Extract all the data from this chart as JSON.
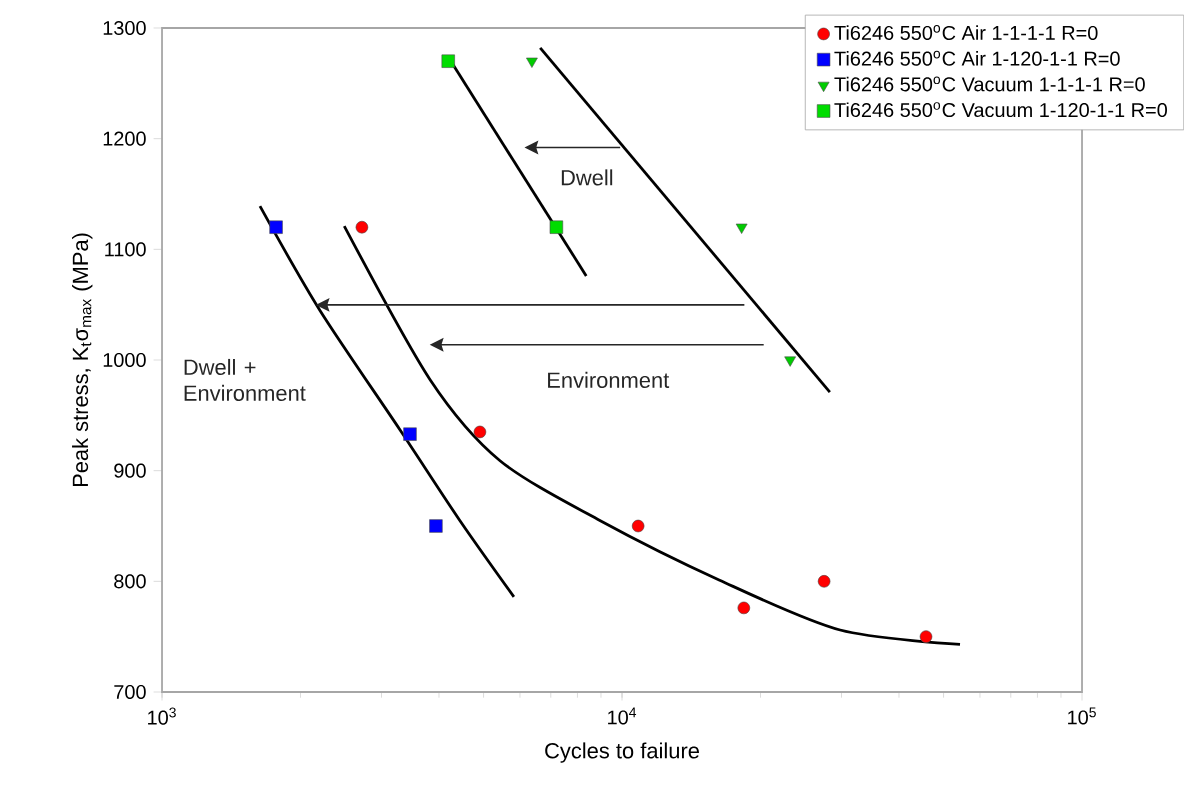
{
  "chart_data": {
    "type": "scatter",
    "xlabel": "Cycles to failure",
    "ylabel": "Peak stress, K$_{t}$σ$_{max}$ (MPa)",
    "log": "x",
    "xlim": [
      1000,
      100000
    ],
    "xticks": [
      {
        "value": 1000,
        "label": "10$^{3}$"
      },
      {
        "value": 10000,
        "label": "10$^{4}$"
      },
      {
        "value": 100000,
        "label": "10$^{5}$"
      }
    ],
    "ylim": [
      700,
      1300
    ],
    "yticks": [
      700,
      800,
      900,
      1000,
      1100,
      1200,
      1300
    ],
    "grid": false,
    "legend": "top right",
    "series": [
      {
        "name": "Ti6246 550$^{o}$C Air 1-1-1-1 R=0",
        "color": "#ff0000",
        "marker": "circle",
        "x": [
          2720,
          4910,
          10840,
          18400,
          27500,
          45800
        ],
        "values": [
          1120,
          935,
          850,
          776,
          800,
          750
        ]
      },
      {
        "name": "Ti6246 550$^{o}$C Air 1-120-1-1 R=0",
        "color": "#0000ff",
        "marker": "square",
        "x": [
          1770,
          3460,
          3940
        ],
        "values": [
          1120,
          933,
          850
        ]
      },
      {
        "name": "Ti6246 550$^{o}$C Vacuum 1-1-1-1 R=0",
        "color": "#00cc00",
        "marker": "triangle",
        "x": [
          6370,
          18200,
          23200
        ],
        "values": [
          1270,
          1120,
          1000
        ]
      },
      {
        "name": "Ti6246 550$^{o}$C Vacuum 1-120-1-1 R=0",
        "color": "#00dd00",
        "marker": "square",
        "x": [
          4190,
          7200
        ],
        "values": [
          1270,
          1120
        ]
      },
      {
        "type": "line",
        "color": "#000000",
        "marker": "none",
        "x": [
          1633,
          2203,
          3290,
          4440,
          5820
        ],
        "values": [
          1139,
          1045,
          937,
          855,
          786
        ]
      },
      {
        "type": "line",
        "color": "#000000",
        "marker": "none",
        "x": [
          2490,
          3830,
          5430,
          8950,
          16300,
          29800,
          54300
        ],
        "values": [
          1121,
          982,
          909,
          855,
          801,
          756,
          743
        ]
      },
      {
        "type": "line",
        "color": "#000000",
        "marker": "none",
        "x": [
          4230,
          8360
        ],
        "values": [
          1271,
          1076
        ]
      },
      {
        "type": "line",
        "color": "#000000",
        "marker": "none",
        "x": [
          6640,
          28300
        ],
        "values": [
          1282,
          971
        ]
      }
    ],
    "annotations": [
      "Dwell",
      "Environment",
      "Dwell + Environment"
    ]
  }
}
